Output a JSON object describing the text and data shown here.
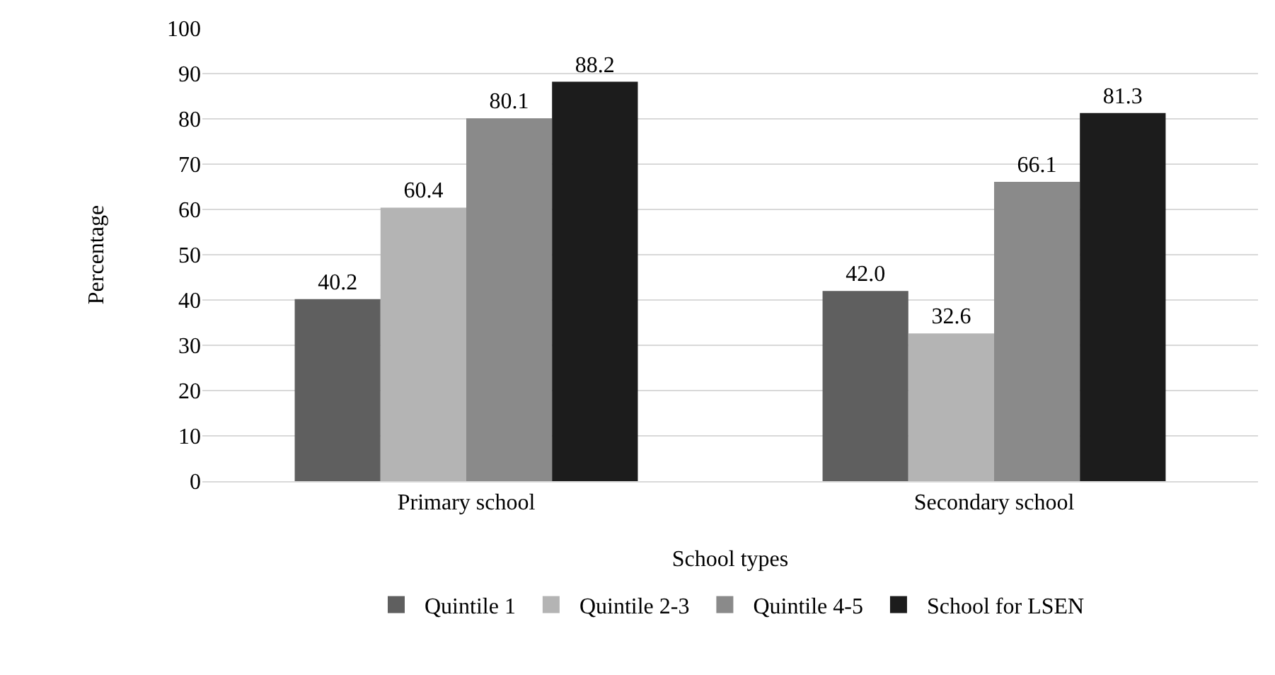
{
  "chart_data": {
    "type": "bar",
    "xlabel": "School types",
    "ylabel": "Percentage",
    "categories": [
      "Primary school",
      "Secondary school"
    ],
    "series": [
      {
        "name": "Quintile 1",
        "color": "#5f5f5f",
        "values": [
          40.2,
          42.0
        ],
        "value_labels": [
          "40.2",
          "42.0"
        ]
      },
      {
        "name": "Quintile 2-3",
        "color": "#b4b4b4",
        "values": [
          60.4,
          32.6
        ],
        "value_labels": [
          "60.4",
          "32.6"
        ]
      },
      {
        "name": "Quintile 4-5",
        "color": "#8a8a8a",
        "values": [
          80.1,
          66.1
        ],
        "value_labels": [
          "80.1",
          "66.1"
        ]
      },
      {
        "name": "School for LSEN",
        "color": "#1c1c1c",
        "values": [
          88.2,
          81.3
        ],
        "value_labels": [
          "88.2",
          "81.3"
        ]
      }
    ],
    "ylim": [
      0,
      100
    ],
    "yticks": [
      0,
      10,
      20,
      30,
      40,
      50,
      60,
      70,
      80,
      90,
      100
    ],
    "grid": "y",
    "legend": "bottom"
  }
}
